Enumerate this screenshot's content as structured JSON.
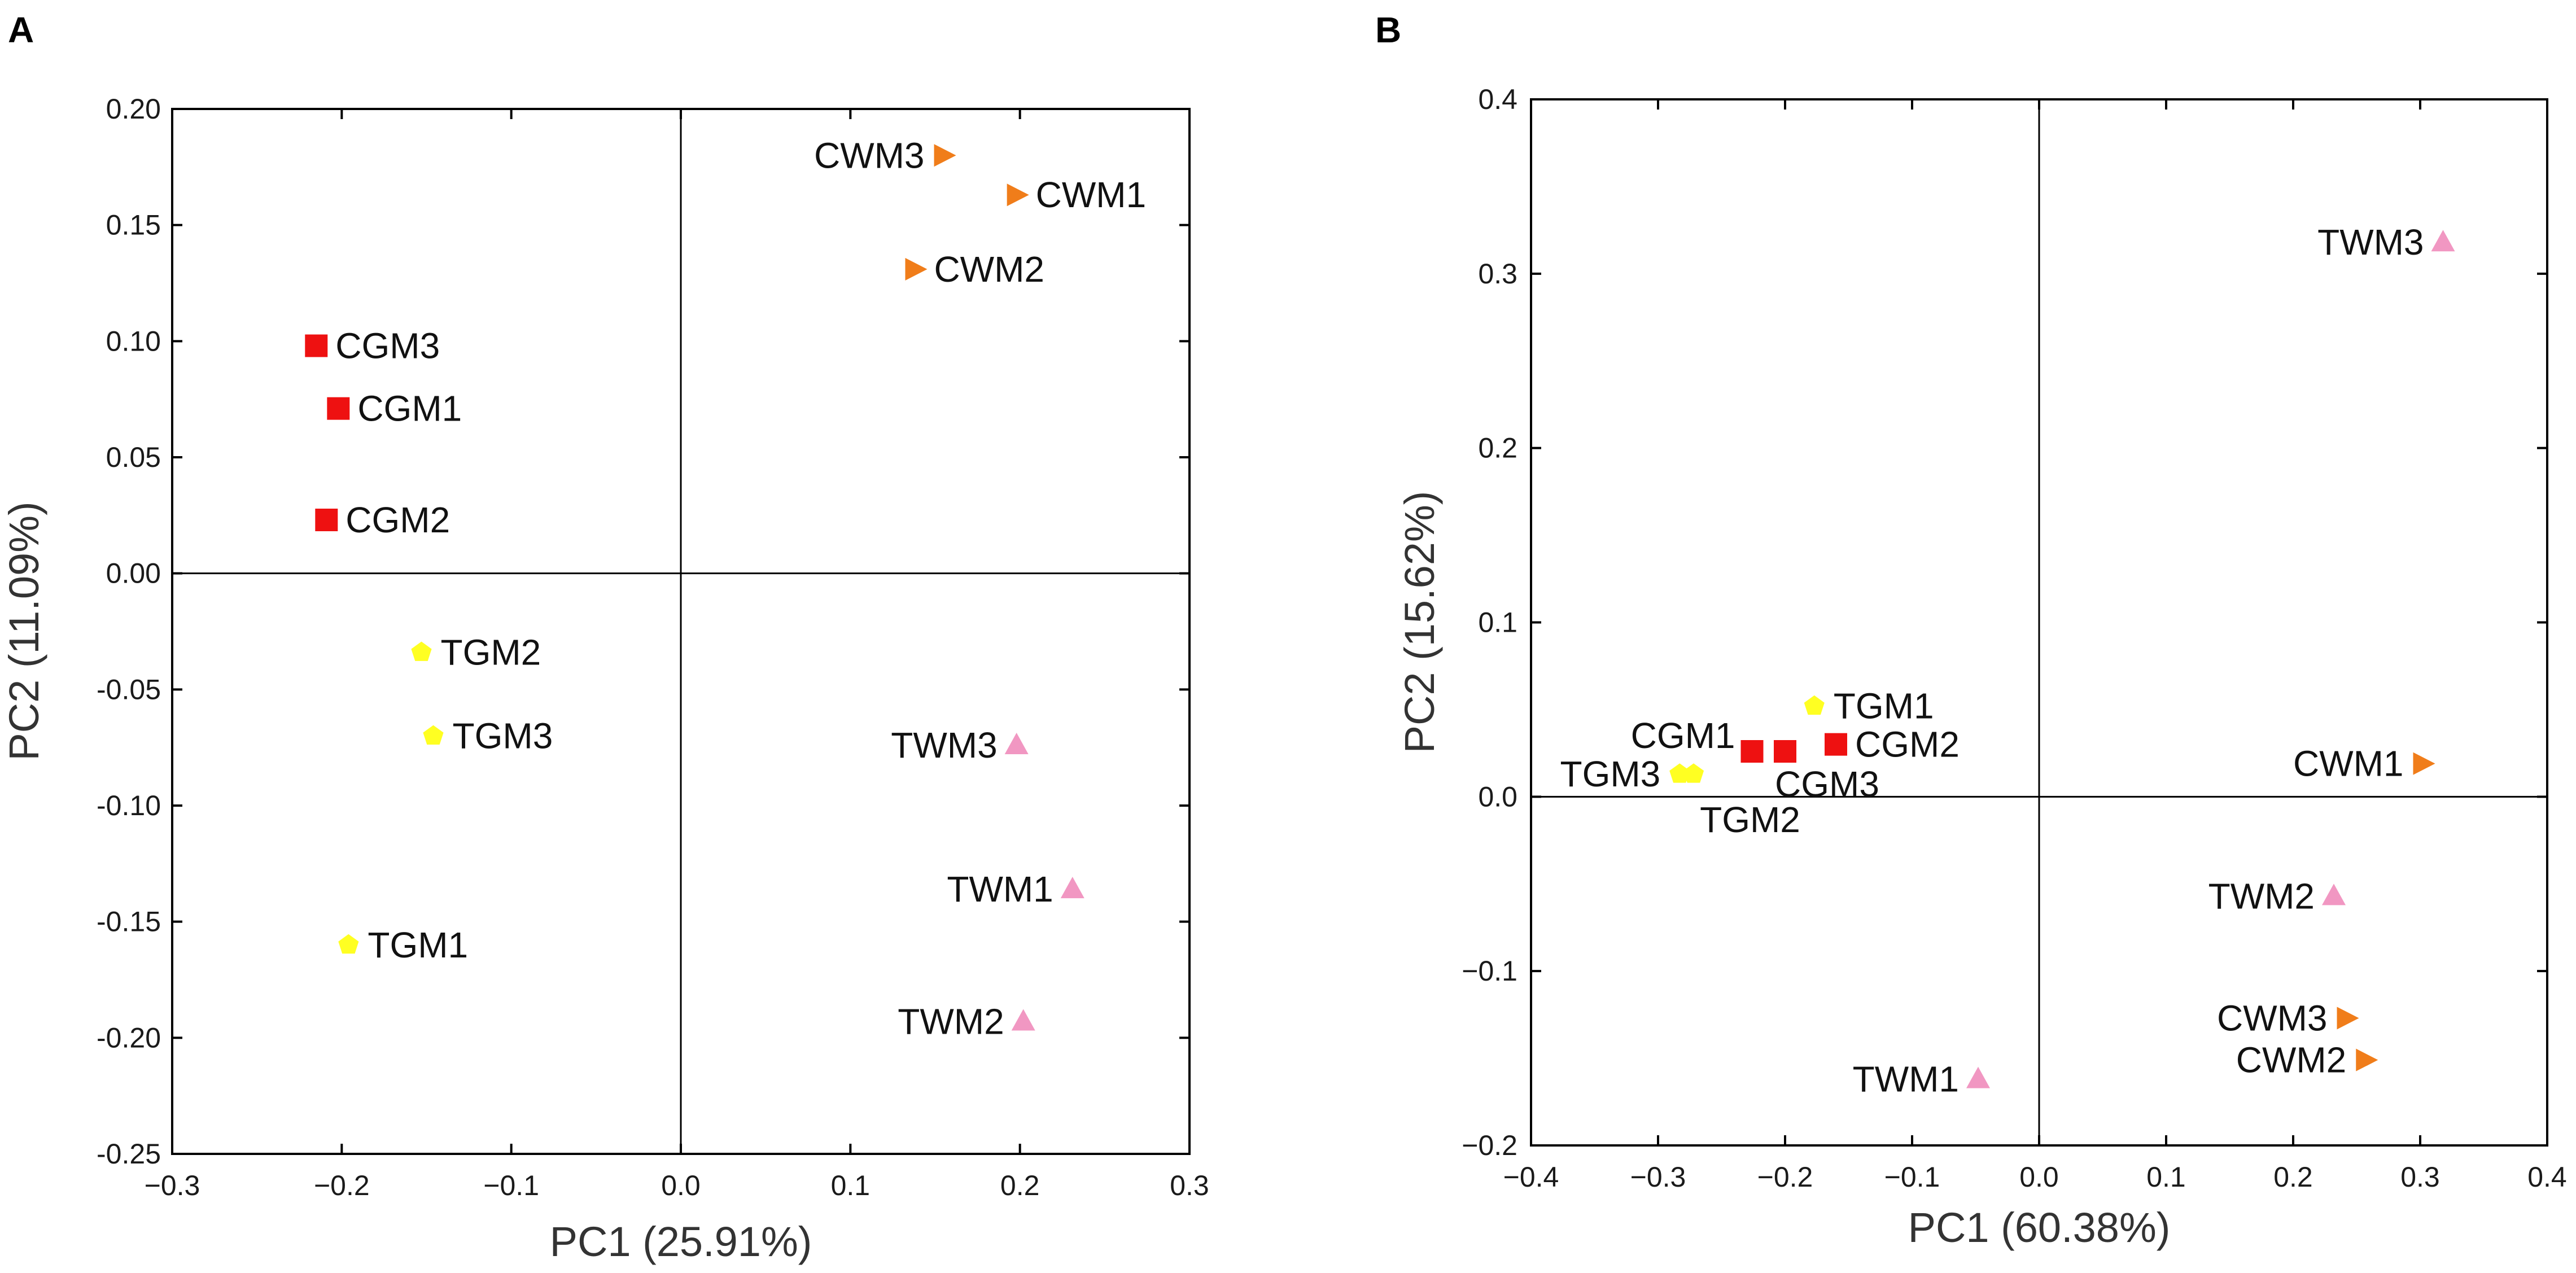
{
  "chart_data": [
    {
      "panel": "A",
      "type": "scatter",
      "xlabel": "PC1 (25.91%)",
      "ylabel": "PC2 (11.09%)",
      "xlim": [
        -0.3,
        0.3
      ],
      "ylim": [
        -0.25,
        0.2
      ],
      "xticks": [
        -0.3,
        -0.2,
        -0.1,
        0.0,
        0.1,
        0.2,
        0.3
      ],
      "xtick_labels": [
        "−0.3",
        "−0.2",
        "−0.1",
        "0.0",
        "0.1",
        "0.2",
        "0.3"
      ],
      "yticks": [
        0.2,
        0.15,
        0.1,
        0.05,
        0.0,
        -0.05,
        -0.1,
        -0.15,
        -0.2,
        -0.25
      ],
      "ytick_labels": [
        "0.20",
        "0.15",
        "0.10",
        "0.05",
        "0.00",
        "-0.05",
        "-0.10",
        "-0.15",
        "-0.20",
        "-0.25"
      ],
      "grid": false,
      "points": [
        {
          "label": "CWM3",
          "x": 0.155,
          "y": 0.18,
          "group": "CWM",
          "label_side": "left"
        },
        {
          "label": "CWM1",
          "x": 0.198,
          "y": 0.163,
          "group": "CWM",
          "label_side": "right"
        },
        {
          "label": "CWM2",
          "x": 0.138,
          "y": 0.131,
          "group": "CWM",
          "label_side": "right"
        },
        {
          "label": "CGM3",
          "x": -0.215,
          "y": 0.098,
          "group": "CGM",
          "label_side": "right"
        },
        {
          "label": "CGM1",
          "x": -0.202,
          "y": 0.071,
          "group": "CGM",
          "label_side": "right"
        },
        {
          "label": "CGM2",
          "x": -0.209,
          "y": 0.023,
          "group": "CGM",
          "label_side": "right"
        },
        {
          "label": "TGM2",
          "x": -0.153,
          "y": -0.034,
          "group": "TGM",
          "label_side": "right"
        },
        {
          "label": "TGM3",
          "x": -0.146,
          "y": -0.07,
          "group": "TGM",
          "label_side": "right"
        },
        {
          "label": "TGM1",
          "x": -0.196,
          "y": -0.16,
          "group": "TGM",
          "label_side": "right"
        },
        {
          "label": "TWM3",
          "x": 0.198,
          "y": -0.074,
          "group": "TWM",
          "label_side": "left"
        },
        {
          "label": "TWM1",
          "x": 0.231,
          "y": -0.136,
          "group": "TWM",
          "label_side": "left"
        },
        {
          "label": "TWM2",
          "x": 0.202,
          "y": -0.193,
          "group": "TWM",
          "label_side": "left"
        }
      ]
    },
    {
      "panel": "B",
      "type": "scatter",
      "xlabel": "PC1 (60.38%)",
      "ylabel": "PC2 (15.62%)",
      "xlim": [
        -0.4,
        0.4
      ],
      "ylim": [
        -0.2,
        0.4
      ],
      "xticks": [
        -0.4,
        -0.3,
        -0.2,
        -0.1,
        0.0,
        0.1,
        0.2,
        0.3,
        0.4
      ],
      "xtick_labels": [
        "−0.4",
        "−0.3",
        "−0.2",
        "−0.1",
        "0.0",
        "0.1",
        "0.2",
        "0.3",
        "0.4"
      ],
      "yticks": [
        0.4,
        0.3,
        0.2,
        0.1,
        0.0,
        -0.1,
        -0.2
      ],
      "ytick_labels": [
        "0.4",
        "0.3",
        "0.2",
        "0.1",
        "0.0",
        "−0.1",
        "−0.2"
      ],
      "grid": false,
      "points": [
        {
          "label": "TWM3",
          "x": 0.318,
          "y": 0.318,
          "group": "TWM",
          "label_side": "left"
        },
        {
          "label": "TGM1",
          "x": -0.177,
          "y": 0.052,
          "group": "TGM",
          "label_side": "right"
        },
        {
          "label": "CGM2",
          "x": -0.16,
          "y": 0.03,
          "group": "CGM",
          "label_side": "right"
        },
        {
          "label": "CGM1",
          "x": -0.226,
          "y": 0.026,
          "group": "CGM",
          "label_side": "above-left"
        },
        {
          "label": "CGM3",
          "x": -0.2,
          "y": 0.026,
          "group": "CGM",
          "label_side": "below-right"
        },
        {
          "label": "TGM3",
          "x": -0.283,
          "y": 0.013,
          "group": "TGM",
          "label_side": "left"
        },
        {
          "label": "TGM2",
          "x": -0.272,
          "y": 0.013,
          "group": "TGM",
          "label_side": "below"
        },
        {
          "label": "CWM1",
          "x": 0.302,
          "y": 0.019,
          "group": "CWM",
          "label_side": "left"
        },
        {
          "label": "TWM2",
          "x": 0.232,
          "y": -0.057,
          "group": "TWM",
          "label_side": "left"
        },
        {
          "label": "CWM3",
          "x": 0.242,
          "y": -0.127,
          "group": "CWM",
          "label_side": "left"
        },
        {
          "label": "CWM2",
          "x": 0.257,
          "y": -0.151,
          "group": "CWM",
          "label_side": "left"
        },
        {
          "label": "TWM1",
          "x": -0.048,
          "y": -0.162,
          "group": "TWM",
          "label_side": "left"
        }
      ]
    }
  ],
  "groups": {
    "CWM": {
      "marker": "triangle-right",
      "color": "#f07d1a"
    },
    "CGM": {
      "marker": "square",
      "color": "#ee1111"
    },
    "TGM": {
      "marker": "pentagon",
      "color": "#ffff22"
    },
    "TWM": {
      "marker": "triangle-up",
      "color": "#f197c2"
    }
  }
}
